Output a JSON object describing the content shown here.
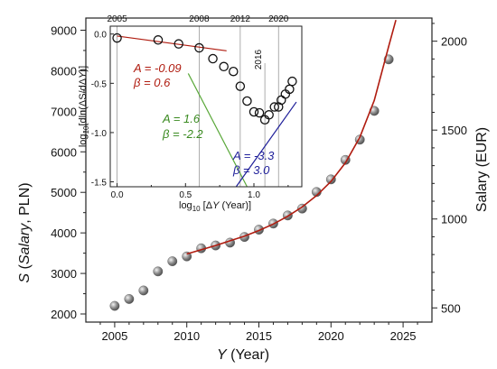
{
  "chart_data": [
    {
      "type": "scatter",
      "xlabel": "Y  (Year)",
      "ylabel_left": "S (Salary, PLN)",
      "ylabel_right": "Salary (EUR)",
      "xlim": [
        2003,
        2027
      ],
      "ylim": [
        1800,
        9300
      ],
      "x_ticks": [
        "2005",
        "2010",
        "2015",
        "2020",
        "2025"
      ],
      "y_ticks": [
        "2000",
        "3000",
        "4000",
        "5000",
        "6000",
        "7000",
        "8000",
        "9000"
      ],
      "y_right_ticks": [
        "500",
        "1000",
        "1500",
        "2000"
      ],
      "y_right_values": [
        500,
        1000,
        1500,
        2000
      ],
      "y_right_equiv_pln": [
        2150,
        4343,
        6537,
        8730
      ],
      "series": [
        {
          "x": [
            2005,
            2006,
            2007,
            2008,
            2009,
            2010,
            2011,
            2012,
            2013,
            2014,
            2015,
            2016,
            2017,
            2018,
            2019,
            2020,
            2021,
            2022,
            2023,
            2024
          ],
          "y": [
            2200,
            2370,
            2580,
            3050,
            3300,
            3420,
            3620,
            3690,
            3760,
            3900,
            4080,
            4230,
            4430,
            4600,
            5010,
            5320,
            5800,
            6300,
            7010,
            8280
          ]
        }
      ],
      "fit_curve": {
        "x": [
          2010,
          2012,
          2014,
          2015,
          2016,
          2017,
          2018,
          2019,
          2020,
          2021,
          2022,
          2023,
          2024,
          2024.5
        ],
        "y": [
          3480,
          3690,
          3920,
          4060,
          4220,
          4410,
          4640,
          4920,
          5270,
          5730,
          6360,
          7270,
          8600,
          9250
        ]
      },
      "colors": {
        "points": "#8a8a8a",
        "fit": "#b01c10"
      }
    },
    {
      "type": "scatter",
      "xlabel": "log10 [ΔY  (Year)]",
      "ylabel": "log10[dln(ΔS/dΔY)]",
      "xlim": [
        -0.05,
        1.35
      ],
      "ylim": [
        -1.55,
        0.08
      ],
      "x_ticks": [
        "0.0",
        "0.5",
        "1.0"
      ],
      "y_ticks": [
        "0.0",
        "-0.5",
        "-1.0",
        "-1.5"
      ],
      "top_axis_labels": [
        "2005",
        "2008",
        "2012",
        "2020",
        "2016"
      ],
      "top_axis_positions": [
        0.0,
        0.6,
        0.9,
        1.18,
        1.08
      ],
      "series": [
        {
          "x": [
            0.0,
            0.3,
            0.45,
            0.6,
            0.7,
            0.78,
            0.85,
            0.9,
            0.95,
            1.0,
            1.04,
            1.08,
            1.11,
            1.15,
            1.18,
            1.2,
            1.23,
            1.26,
            1.28
          ],
          "y": [
            -0.04,
            -0.06,
            -0.1,
            -0.14,
            -0.25,
            -0.33,
            -0.38,
            -0.53,
            -0.68,
            -0.79,
            -0.8,
            -0.87,
            -0.82,
            -0.74,
            -0.74,
            -0.67,
            -0.61,
            -0.56,
            -0.48
          ]
        }
      ],
      "fits": [
        {
          "x1": 0.0,
          "y1": -0.02,
          "x2": 0.8,
          "y2": -0.17,
          "color": "#b01c10"
        },
        {
          "x1": 0.52,
          "y1": -0.4,
          "x2": 0.95,
          "y2": -1.55,
          "color": "#5aa83a"
        },
        {
          "x1": 0.87,
          "y1": -1.55,
          "x2": 1.31,
          "y2": -0.69,
          "color": "#1f1f9a"
        }
      ],
      "annotations": [
        {
          "lines": [
            "A = -0.09",
            "β = 0.6"
          ],
          "color": "#b01c10"
        },
        {
          "lines": [
            "A = 1.6",
            "β = -2.2"
          ],
          "color": "#3a8a20"
        },
        {
          "lines": [
            "A = -3.3",
            "β = 3.0"
          ],
          "color": "#1f1f9a"
        }
      ]
    }
  ]
}
